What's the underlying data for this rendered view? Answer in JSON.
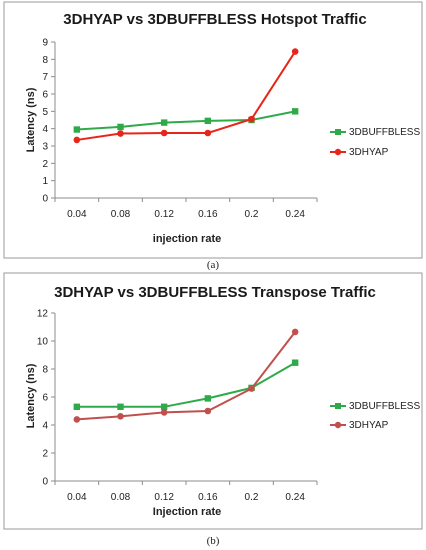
{
  "chart_data": [
    {
      "type": "line",
      "title": "3DHYAP vs 3DBUFFBLESS Hotspot Traffic",
      "xlabel": "injection rate",
      "ylabel": "Latency (ns)",
      "categories": [
        "0.04",
        "0.08",
        "0.12",
        "0.16",
        "0.2",
        "0.24"
      ],
      "ylim": [
        0,
        9
      ],
      "yticks": [
        "0",
        "1",
        "2",
        "3",
        "4",
        "5",
        "6",
        "7",
        "8",
        "9"
      ],
      "grid": false,
      "legend": "right",
      "series": [
        {
          "name": "3DBUFFBLESS",
          "values": [
            3.95,
            4.1,
            4.35,
            4.45,
            4.5,
            5.0
          ],
          "color": "#2eaa4a",
          "marker": "square"
        },
        {
          "name": "3DHYAP",
          "values": [
            3.35,
            3.72,
            3.75,
            3.75,
            4.55,
            8.45
          ],
          "color": "#e8251a",
          "marker": "circle"
        }
      ],
      "caption": "(a)"
    },
    {
      "type": "line",
      "title": "3DHYAP vs 3DBUFFBLESS Transpose Traffic",
      "xlabel": "Injection rate",
      "ylabel": "Latency (ns)",
      "categories": [
        "0.04",
        "0.08",
        "0.12",
        "0.16",
        "0.2",
        "0.24"
      ],
      "ylim": [
        0,
        12
      ],
      "yticks": [
        "0",
        "2",
        "4",
        "6",
        "8",
        "10",
        "12"
      ],
      "grid": false,
      "legend": "right",
      "series": [
        {
          "name": "3DBUFFBLESS",
          "values": [
            5.3,
            5.3,
            5.3,
            5.9,
            6.65,
            8.45
          ],
          "color": "#2eaa4a",
          "marker": "square"
        },
        {
          "name": "3DHYAP",
          "values": [
            4.4,
            4.62,
            4.9,
            5.0,
            6.6,
            10.65
          ],
          "color": "#c0504d",
          "marker": "circle"
        }
      ],
      "caption": "(b)"
    }
  ]
}
